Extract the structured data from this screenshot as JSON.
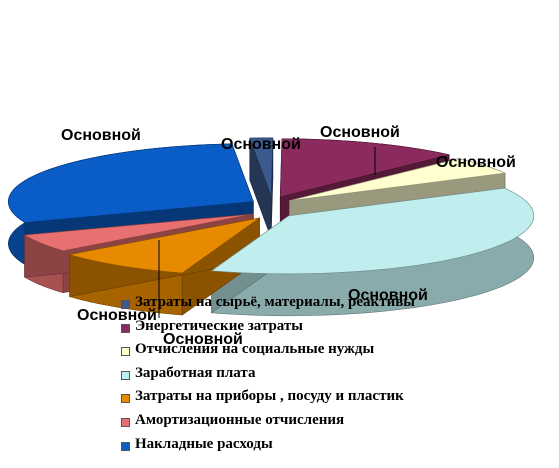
{
  "chart_data": {
    "type": "pie",
    "title": "",
    "slices": [
      {
        "name": "Затраты на сырьё, материалы, реактивы",
        "value": 1.5,
        "color": "#3d5a8e",
        "data_label": "Основной"
      },
      {
        "name": "Энергетические затраты",
        "value": 12,
        "color": "#8b2a5c",
        "data_label": "Основной"
      },
      {
        "name": "Отчисления на социальные нужды",
        "value": 5,
        "color": "#ffffd0",
        "data_label": "Основной"
      },
      {
        "name": "Заработная плата",
        "value": 38,
        "color": "#c0eeee",
        "data_label": "Основной"
      },
      {
        "name": "Затраты на приборы , посуду и пластик",
        "value": 9,
        "color": "#e88a00",
        "data_label": "Основной"
      },
      {
        "name": "Амортизационные отчисления",
        "value": 5,
        "color": "#e87070",
        "data_label": "Основной"
      },
      {
        "name": "Накладные расходы",
        "value": 29.5,
        "color": "#0a5cc6",
        "data_label": "Основной"
      }
    ],
    "legend_position": "bottom-center"
  }
}
